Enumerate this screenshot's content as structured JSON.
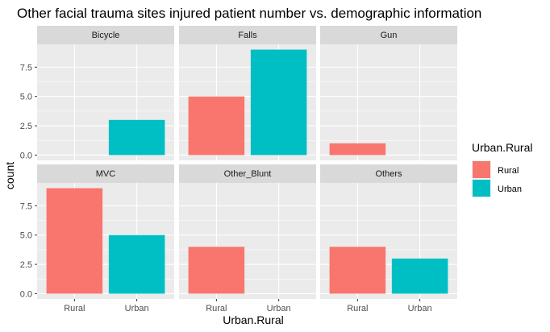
{
  "chart_data": {
    "type": "bar",
    "title": "Other facial trauma  sites injured patient number vs. demographic information",
    "xlabel": "Urban.Rural",
    "ylabel": "count",
    "categories": [
      "Rural",
      "Urban"
    ],
    "ylim": [
      0,
      9
    ],
    "yticks": [
      0.0,
      2.5,
      5.0,
      7.5
    ],
    "ytick_labels": [
      "0.0",
      "2.5",
      "5.0",
      "7.5"
    ],
    "grid": true,
    "legend": {
      "title": "Urban.Rural",
      "position": "right",
      "entries": [
        {
          "name": "Rural",
          "color": "#F8766D"
        },
        {
          "name": "Urban",
          "color": "#00BFC4"
        }
      ]
    },
    "facets": [
      {
        "name": "Bicycle",
        "values": [
          0,
          3
        ]
      },
      {
        "name": "Falls",
        "values": [
          5,
          9
        ]
      },
      {
        "name": "Gun",
        "values": [
          1,
          0
        ]
      },
      {
        "name": "MVC",
        "values": [
          9,
          5
        ]
      },
      {
        "name": "Other_Blunt",
        "values": [
          4,
          0
        ]
      },
      {
        "name": "Others",
        "values": [
          4,
          3
        ]
      }
    ]
  }
}
